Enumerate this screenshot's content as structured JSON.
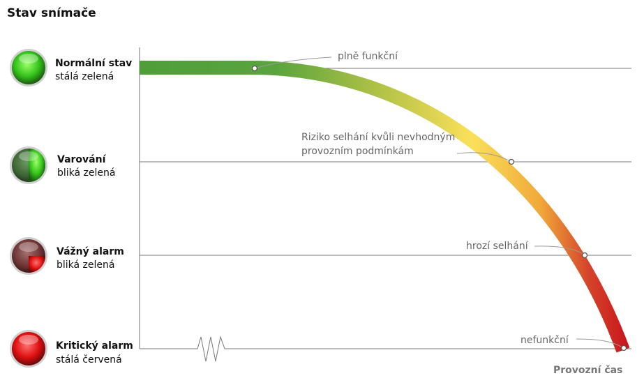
{
  "title": "Stav snímače",
  "states": [
    {
      "name": "Normální stav",
      "description": "stálá zelená"
    },
    {
      "name": "Varování",
      "description": "bliká zelená"
    },
    {
      "name": "Vážný alarm",
      "description": "bliká zelená"
    },
    {
      "name": "Kritický alarm",
      "description": "stálá červená"
    }
  ],
  "annotations": [
    {
      "lines": [
        "plně funkční"
      ]
    },
    {
      "lines": [
        "Riziko selhání kvůli nevhodným",
        "provozním podmínkám"
      ]
    },
    {
      "lines": [
        "hrozí selhání"
      ]
    },
    {
      "lines": [
        "nefunkční"
      ]
    }
  ],
  "x_axis_label": "Provozní čas"
}
